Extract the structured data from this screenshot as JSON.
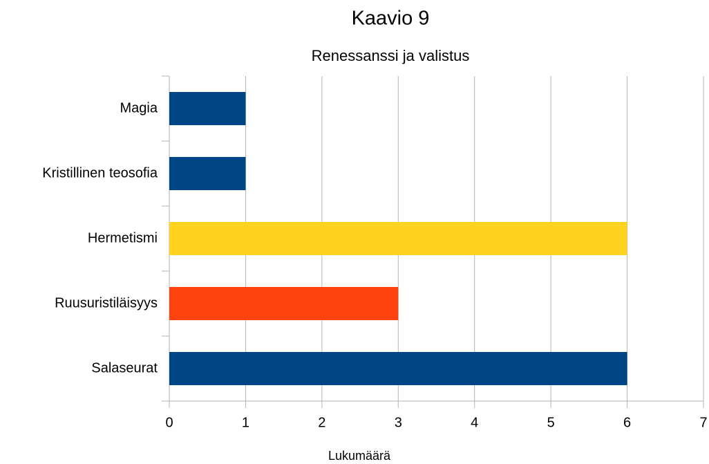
{
  "chart_data": {
    "type": "bar",
    "orientation": "horizontal",
    "title": "Kaavio 9",
    "subtitle": "Renessanssi ja valistus",
    "x_label": "Lukumäärä",
    "categories": [
      "Magia",
      "Kristillinen teosofia",
      "Hermetismi",
      "Ruusuristiläisyys",
      "Salaseurat"
    ],
    "values": [
      1,
      1,
      6,
      3,
      6
    ],
    "colors": [
      "#004586",
      "#004586",
      "#ffd320",
      "#ff420e",
      "#004586"
    ],
    "xlim": [
      0,
      7
    ],
    "xticks": [
      0,
      1,
      2,
      3,
      4,
      5,
      6,
      7
    ],
    "grid": true
  }
}
